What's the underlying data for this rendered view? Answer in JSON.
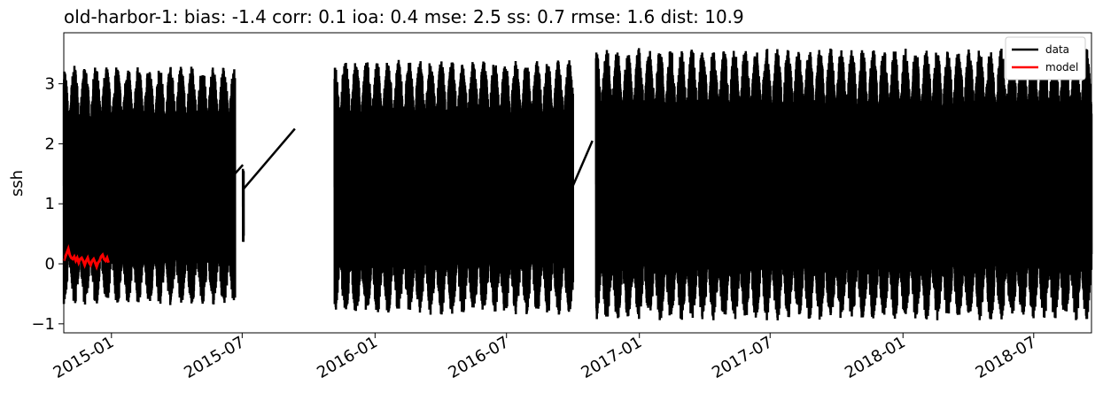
{
  "chart_data": {
    "type": "line",
    "title": "old-harbor-1: bias: -1.4  corr: 0.1  ioa: 0.4  mse: 2.5  ss: 0.7  rmse: 1.6  dist: 10.9",
    "xlabel": "",
    "ylabel": "ssh",
    "xlim": [
      "2014-10-27",
      "2018-09-19"
    ],
    "ylim": [
      -1.15,
      3.85
    ],
    "x_ticks": [
      "2015-01",
      "2015-07",
      "2016-01",
      "2016-07",
      "2017-01",
      "2017-07",
      "2018-01",
      "2018-07"
    ],
    "y_ticks": [
      -1,
      0,
      1,
      2,
      3
    ],
    "y_tick_labels": [
      "−1",
      "0",
      "1",
      "2",
      "3"
    ],
    "legend_position": "top-right",
    "series": [
      {
        "name": "data",
        "color": "#000000",
        "style": "dense tidal oscillation",
        "data_segments": [
          {
            "start": "2014-10-27",
            "end": "2015-06-21",
            "low": -0.7,
            "high": 3.3
          },
          {
            "start": "2015-07-02",
            "end": "2015-07-03",
            "low": 0.3,
            "high": 1.6
          },
          {
            "start": "2015-11-06",
            "end": "2016-10-01",
            "low": -0.85,
            "high": 3.4
          },
          {
            "start": "2016-11-02",
            "end": "2018-09-19",
            "low": -0.95,
            "high": 3.6
          }
        ],
        "gap_connectors": [
          {
            "x": [
              "2015-06-21",
              "2015-07-02"
            ],
            "y": [
              1.5,
              1.65
            ]
          },
          {
            "x": [
              "2015-07-03",
              "2015-09-12"
            ],
            "y": [
              1.25,
              2.25
            ]
          },
          {
            "x": [
              "2016-10-01",
              "2016-10-28"
            ],
            "y": [
              1.3,
              2.05
            ]
          },
          {
            "x": [
              "2016-12-05",
              "2016-12-30"
            ],
            "y": [
              1.2,
              0.6
            ]
          }
        ]
      },
      {
        "name": "model",
        "color": "#ff0000",
        "x_range": [
          "2014-10-27",
          "2014-12-28"
        ],
        "values_approx": [
          0.05,
          0.12,
          0.18,
          0.25,
          0.15,
          0.1,
          0.08,
          0.12,
          0.05,
          0.1,
          0.02,
          0.08,
          0.1,
          0.05,
          -0.02,
          0.05,
          0.1,
          0.02,
          -0.02,
          0.05,
          0.08,
          0.02,
          -0.05,
          0.02,
          0.05,
          0.12,
          0.15,
          0.08,
          0.05,
          0.1,
          0.02
        ]
      }
    ]
  }
}
